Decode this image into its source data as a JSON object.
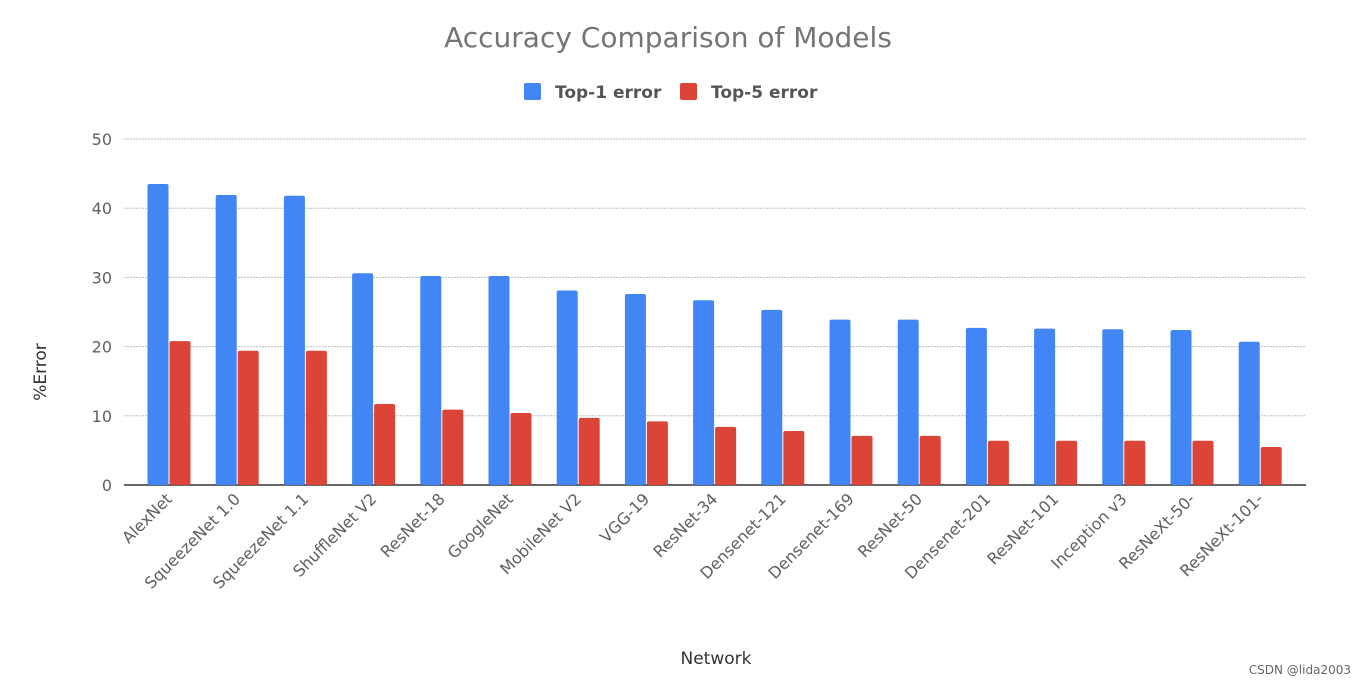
{
  "chart_data": {
    "type": "bar",
    "title": "Accuracy Comparison of Models",
    "xlabel": "Network",
    "ylabel": "%Error",
    "ylim": [
      0,
      50
    ],
    "yticks": [
      0,
      10,
      20,
      30,
      40,
      50
    ],
    "grid": true,
    "legend_position": "top",
    "categories": [
      "AlexNet",
      "SqueezeNet 1.0",
      "SqueezeNet 1.1",
      "ShuffleNet V2",
      "ResNet-18",
      "GoogleNet",
      "MobileNet V2",
      "VGG-19",
      "ResNet-34",
      "Densenet-121",
      "Densenet-169",
      "ResNet-50",
      "Densenet-201",
      "ResNet-101",
      "Inception v3",
      "ResNeXt-50-",
      "ResNeXt-101-"
    ],
    "series": [
      {
        "name": "Top-1 error",
        "color": "#4285f4",
        "values": [
          43.5,
          41.9,
          41.8,
          30.6,
          30.2,
          30.2,
          28.1,
          27.6,
          26.7,
          25.3,
          23.9,
          23.9,
          22.7,
          22.6,
          22.5,
          22.4,
          20.7
        ]
      },
      {
        "name": "Top-5 error",
        "color": "#db4437",
        "values": [
          20.8,
          19.4,
          19.4,
          11.7,
          10.9,
          10.4,
          9.7,
          9.2,
          8.4,
          7.8,
          7.1,
          7.1,
          6.4,
          6.4,
          6.4,
          6.4,
          5.5
        ]
      }
    ]
  },
  "watermark": "CSDN @lida2003"
}
